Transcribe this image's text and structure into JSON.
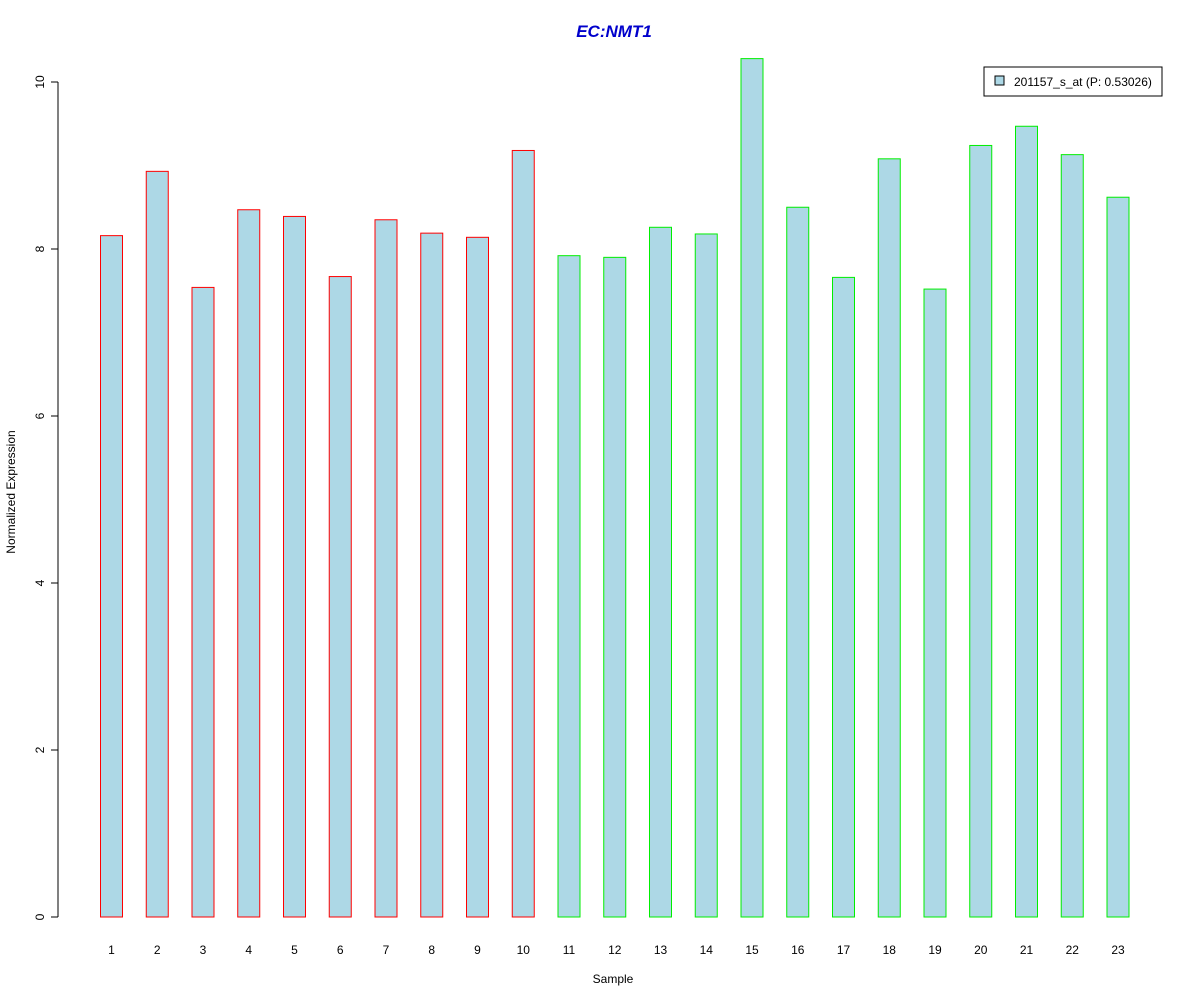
{
  "chart_data": {
    "type": "bar",
    "title": "EC:NMT1",
    "xlabel": "Sample",
    "ylabel": "Normalized Expression",
    "categories": [
      "1",
      "2",
      "3",
      "4",
      "5",
      "6",
      "7",
      "8",
      "9",
      "10",
      "11",
      "12",
      "13",
      "14",
      "15",
      "16",
      "17",
      "18",
      "19",
      "20",
      "21",
      "22",
      "23"
    ],
    "series": [
      {
        "name": "201157_s_at (P: 0.53026)",
        "values": [
          8.16,
          8.93,
          7.54,
          8.47,
          8.39,
          7.67,
          8.35,
          8.19,
          8.14,
          9.18,
          7.92,
          7.9,
          8.26,
          8.18,
          10.28,
          8.5,
          7.66,
          9.08,
          7.52,
          9.24,
          9.47,
          9.13,
          8.62
        ]
      }
    ],
    "groups": [
      {
        "range": [
          1,
          10
        ],
        "border_color": "#ff0000"
      },
      {
        "range": [
          11,
          23
        ],
        "border_color": "#00ee00"
      }
    ],
    "fill_color": "#add8e6",
    "title_color": "#0000cc",
    "ylim": [
      0,
      10
    ],
    "yticks": [
      0,
      2,
      4,
      6,
      8,
      10
    ],
    "legend_position": "top-right",
    "grid": false
  }
}
